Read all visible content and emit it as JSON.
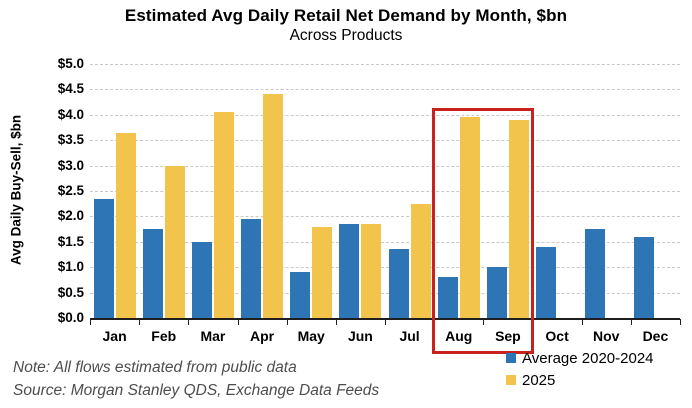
{
  "header": {
    "title": "Estimated Avg Daily Retail Net Demand by Month, $bn",
    "subtitle": "Across Products"
  },
  "chart_data": {
    "type": "bar",
    "title": "Estimated Avg Daily Retail Net Demand by Month, $bn",
    "subtitle": "Across Products",
    "categories": [
      "Jan",
      "Feb",
      "Mar",
      "Apr",
      "May",
      "Jun",
      "Jul",
      "Aug",
      "Sep",
      "Oct",
      "Nov",
      "Dec"
    ],
    "series": [
      {
        "name": "Average 2020-2024",
        "color": "#2e75b6",
        "values": [
          2.35,
          1.75,
          1.5,
          1.95,
          0.9,
          1.85,
          1.35,
          0.8,
          1.0,
          1.4,
          1.75,
          1.6
        ]
      },
      {
        "name": "2025",
        "color": "#f3c44c",
        "values": [
          3.65,
          3.0,
          4.05,
          4.4,
          1.8,
          1.85,
          2.25,
          3.95,
          3.9,
          null,
          null,
          null
        ]
      }
    ],
    "xlabel": "",
    "ylabel": "Avg Daily Buy-Sell, $bn",
    "ylim": [
      0,
      5
    ],
    "ytick_step": 0.5,
    "ytick_labels": [
      "$5.0",
      "$4.5",
      "$4.0",
      "$3.5",
      "$3.0",
      "$2.5",
      "$2.0",
      "$1.5",
      "$1.0",
      "$0.5",
      "$0.0"
    ],
    "grid": "horizontal-dashed",
    "legend_position": "bottom-right",
    "highlight": {
      "categories": [
        "Aug",
        "Sep"
      ],
      "color": "#c9211e"
    }
  },
  "legend": {
    "items": [
      {
        "label": "Average 2020-2024",
        "color": "#2e75b6"
      },
      {
        "label": "2025",
        "color": "#f3c44c"
      }
    ]
  },
  "notes": {
    "note": "Note: All flows estimated from public data",
    "source": "Source: Morgan Stanley QDS, Exchange Data Feeds"
  }
}
